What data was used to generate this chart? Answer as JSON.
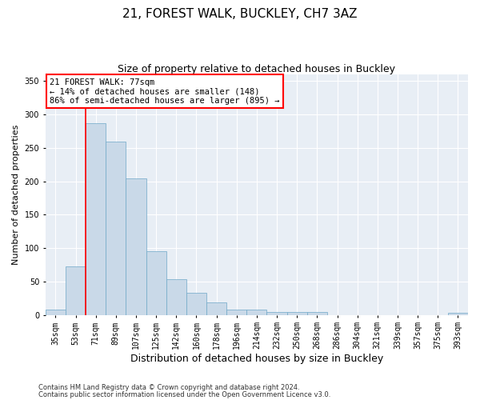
{
  "title": "21, FOREST WALK, BUCKLEY, CH7 3AZ",
  "subtitle": "Size of property relative to detached houses in Buckley",
  "xlabel": "Distribution of detached houses by size in Buckley",
  "ylabel": "Number of detached properties",
  "footer_line1": "Contains HM Land Registry data © Crown copyright and database right 2024.",
  "footer_line2": "Contains public sector information licensed under the Open Government Licence v3.0.",
  "bin_labels": [
    "35sqm",
    "53sqm",
    "71sqm",
    "89sqm",
    "107sqm",
    "125sqm",
    "142sqm",
    "160sqm",
    "178sqm",
    "196sqm",
    "214sqm",
    "232sqm",
    "250sqm",
    "268sqm",
    "286sqm",
    "304sqm",
    "321sqm",
    "339sqm",
    "357sqm",
    "375sqm",
    "393sqm"
  ],
  "bar_values": [
    8,
    73,
    287,
    259,
    204,
    95,
    53,
    33,
    19,
    8,
    8,
    4,
    4,
    4,
    0,
    0,
    0,
    0,
    0,
    0,
    3
  ],
  "bar_color": "#c9d9e8",
  "bar_edge_color": "#6fa8c8",
  "annotation_line1": "21 FOREST WALK: 77sqm",
  "annotation_line2": "← 14% of detached houses are smaller (148)",
  "annotation_line3": "86% of semi-detached houses are larger (895) →",
  "annotation_box_color": "white",
  "annotation_box_edge_color": "red",
  "vline_color": "red",
  "vline_position": 1.5,
  "ylim": [
    0,
    360
  ],
  "yticks": [
    0,
    50,
    100,
    150,
    200,
    250,
    300,
    350
  ],
  "background_color": "#e8eef5",
  "grid_color": "white",
  "title_fontsize": 11,
  "subtitle_fontsize": 9,
  "annotation_fontsize": 7.5,
  "ylabel_fontsize": 8,
  "xlabel_fontsize": 9,
  "tick_fontsize": 7
}
